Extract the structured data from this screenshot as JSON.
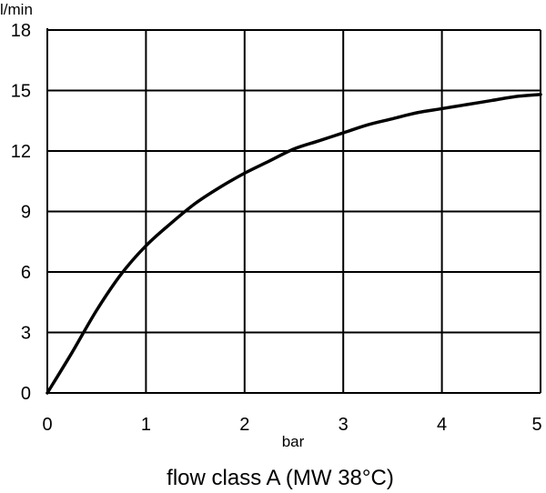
{
  "chart_data": {
    "type": "line",
    "title": "flow class A (MW 38°C)",
    "xlabel": "bar",
    "ylabel": "l/min",
    "xlim": [
      0,
      5
    ],
    "ylim": [
      0,
      18
    ],
    "grid": true,
    "x_ticks": [
      "0",
      "1",
      "2",
      "3",
      "4",
      "5"
    ],
    "y_ticks": [
      "0",
      "3",
      "6",
      "9",
      "12",
      "15",
      "18"
    ],
    "colors": {
      "line": "#000000",
      "grid": "#000000",
      "background": "#ffffff"
    },
    "series": [
      {
        "x": [
          0,
          0.25,
          0.5,
          0.75,
          1.0,
          1.25,
          1.5,
          1.75,
          2.0,
          2.25,
          2.5,
          2.75,
          3.0,
          3.25,
          3.5,
          3.75,
          4.0,
          4.25,
          4.5,
          4.75,
          5.0
        ],
        "y": [
          0,
          2.0,
          4.1,
          5.9,
          7.3,
          8.4,
          9.4,
          10.2,
          10.9,
          11.5,
          12.1,
          12.5,
          12.9,
          13.3,
          13.6,
          13.9,
          14.1,
          14.3,
          14.5,
          14.7,
          14.8
        ]
      }
    ]
  }
}
